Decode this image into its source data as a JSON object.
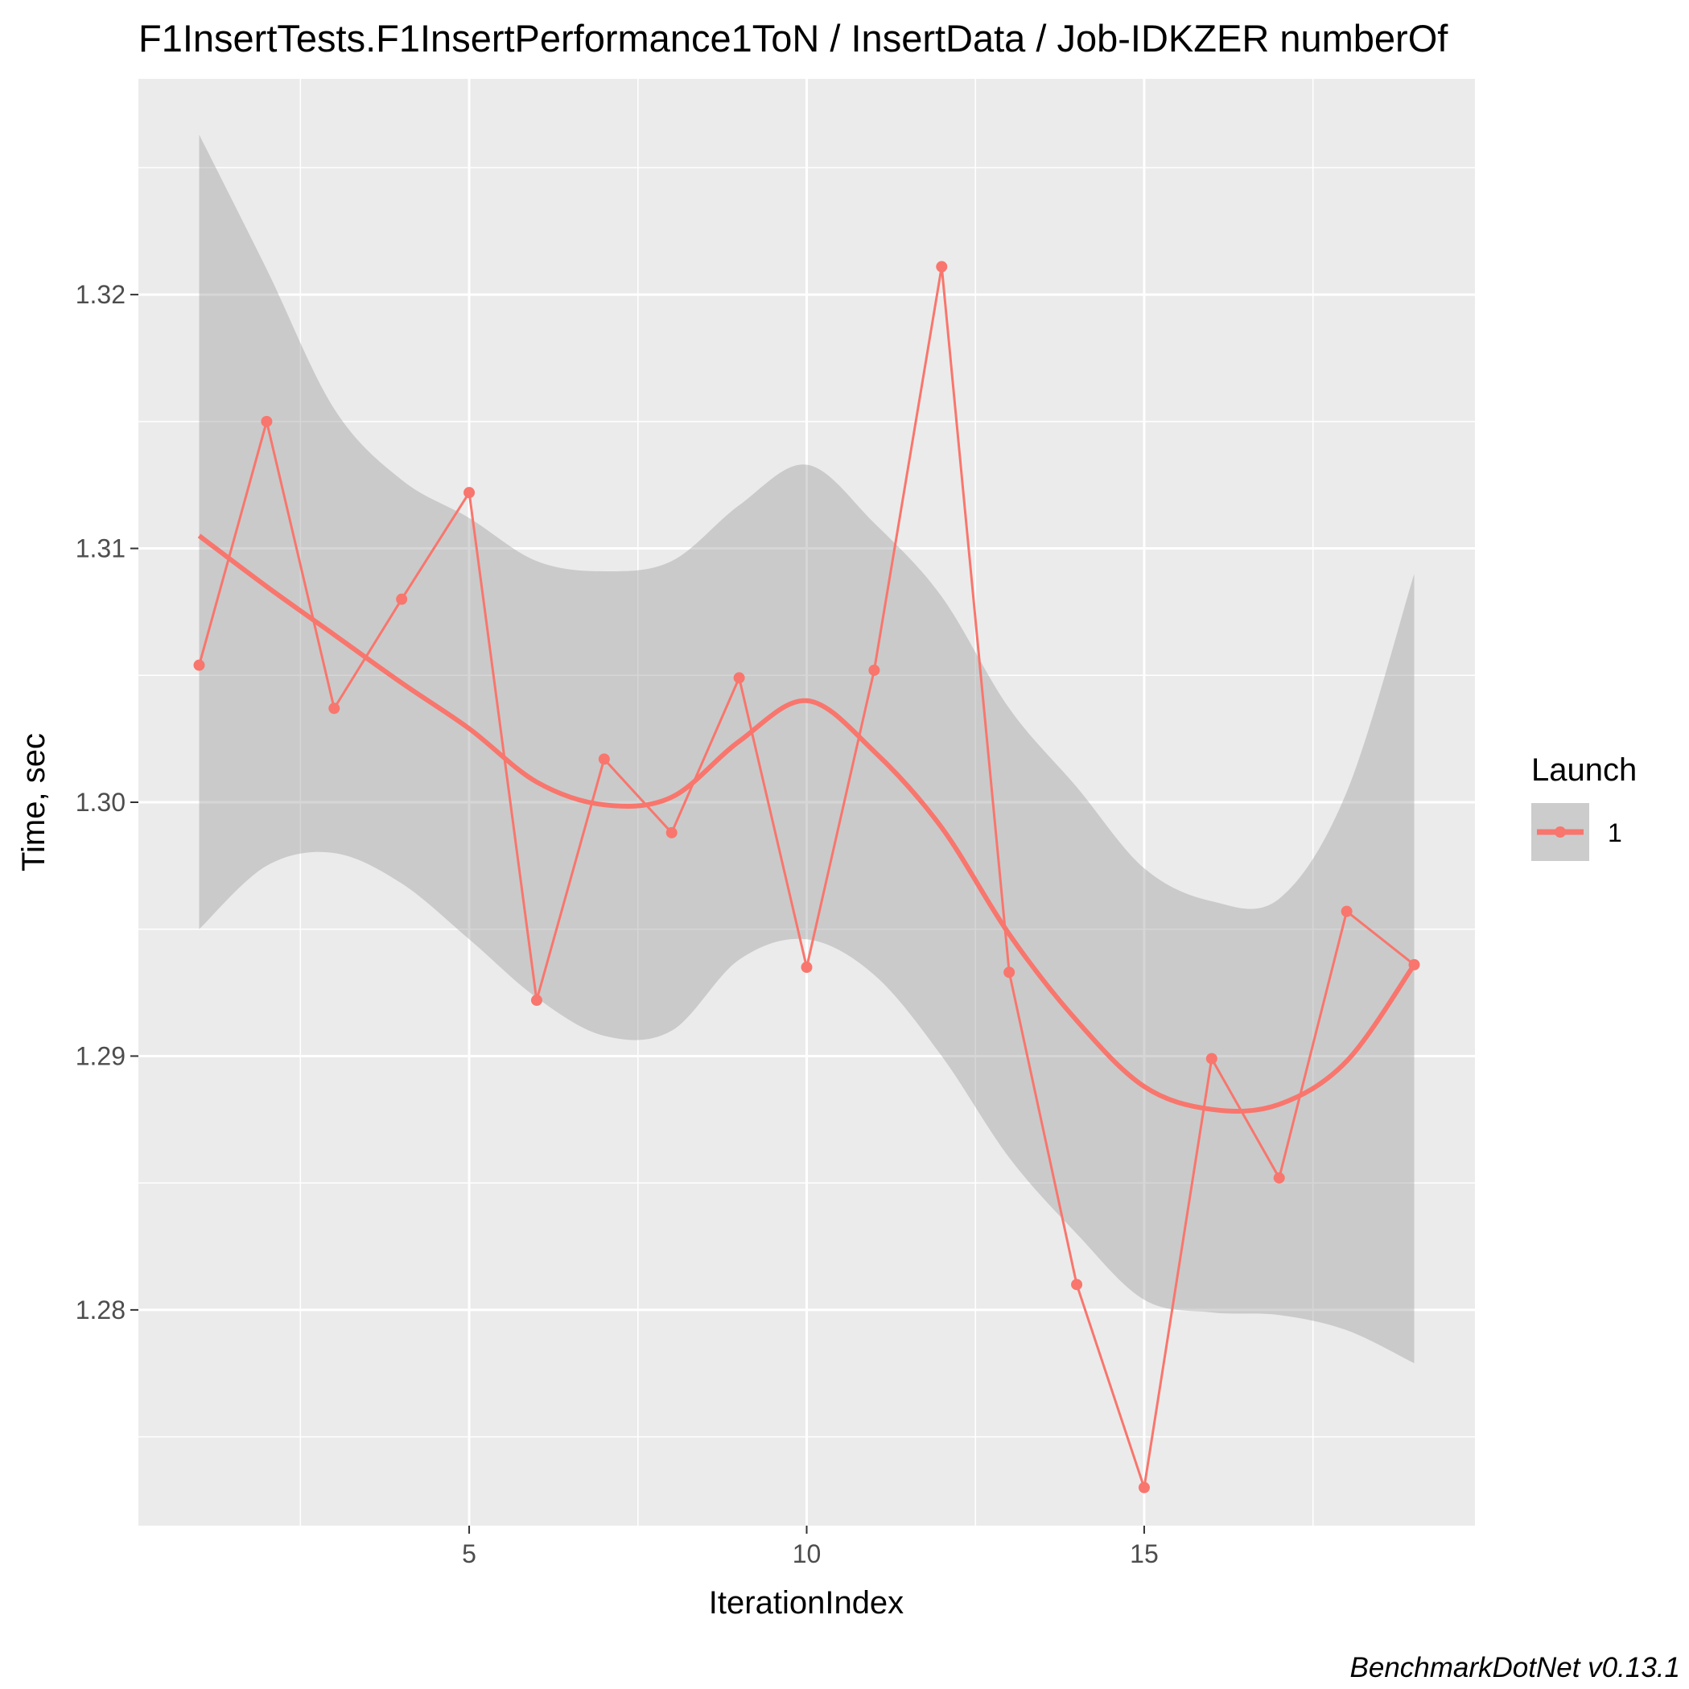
{
  "chart_data": {
    "type": "line",
    "title": "F1InsertTests.F1InsertPerformance1ToN / InsertData / Job-IDKZER numberOf",
    "xlabel": "IterationIndex",
    "ylabel": "Time, sec",
    "caption": "BenchmarkDotNet v0.13.1",
    "xlim": [
      0.1,
      19.9
    ],
    "ylim": [
      1.2715,
      1.3285
    ],
    "x_ticks": [
      5,
      10,
      15
    ],
    "x_tick_labels": [
      "5",
      "10",
      "15"
    ],
    "y_ticks": [
      1.28,
      1.29,
      1.3,
      1.31,
      1.32
    ],
    "y_tick_labels": [
      "1.28",
      "1.29",
      "1.30",
      "1.31",
      "1.32"
    ],
    "grid": true,
    "legend": {
      "title": "Launch",
      "position": "right",
      "entries": [
        "1"
      ]
    },
    "series": [
      {
        "name": "1",
        "color": "#f8766d",
        "x": [
          1,
          2,
          3,
          4,
          5,
          6,
          7,
          8,
          9,
          10,
          11,
          12,
          13,
          14,
          15,
          16,
          17,
          18,
          19
        ],
        "values": [
          1.3054,
          1.315,
          1.3037,
          1.308,
          1.3122,
          1.2922,
          1.3017,
          1.2988,
          1.3049,
          1.2935,
          1.3052,
          1.3211,
          1.2933,
          1.281,
          1.273,
          1.2899,
          1.2852,
          1.2957,
          1.2936
        ]
      }
    ],
    "smooth": {
      "color": "#f8766d",
      "band_color": "#999999",
      "x": [
        1,
        2,
        3,
        4,
        5,
        6,
        7,
        8,
        9,
        10,
        11,
        12,
        13,
        14,
        15,
        16,
        17,
        18,
        19
      ],
      "fit": [
        1.3105,
        1.3085,
        1.3066,
        1.3047,
        1.3029,
        1.3008,
        1.2999,
        1.3002,
        1.3024,
        1.304,
        1.302,
        1.299,
        1.2948,
        1.2914,
        1.2888,
        1.2879,
        1.2881,
        1.2898,
        1.2936
      ],
      "lower": [
        1.295,
        1.2975,
        1.298,
        1.2968,
        1.2946,
        1.2923,
        1.2908,
        1.291,
        1.2938,
        1.2946,
        1.2932,
        1.29,
        1.286,
        1.283,
        1.2804,
        1.2799,
        1.2798,
        1.2792,
        1.2779
      ],
      "upper": [
        1.3263,
        1.321,
        1.3155,
        1.3127,
        1.3112,
        1.3095,
        1.3091,
        1.3095,
        1.3117,
        1.3133,
        1.311,
        1.3081,
        1.3037,
        1.3006,
        1.2974,
        1.2961,
        1.2962,
        1.3004,
        1.309
      ]
    }
  }
}
